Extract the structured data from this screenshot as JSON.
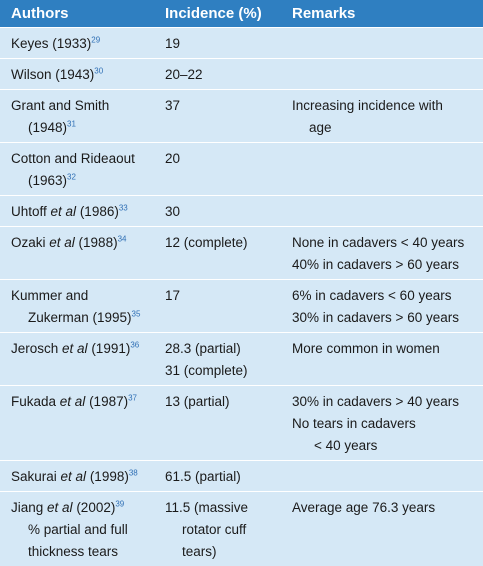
{
  "headers": {
    "authors": "Authors",
    "incidence": "Incidence (%)",
    "remarks": "Remarks"
  },
  "rows": [
    {
      "a1": "Keyes (1933)",
      "ref": "29",
      "inc": "19",
      "rem1": "",
      "rem2": ""
    },
    {
      "a1": "Wilson (1943)",
      "ref": "30",
      "inc": "20–22",
      "rem1": "",
      "rem2": ""
    },
    {
      "a1": "Grant and Smith",
      "a2": "(1948)",
      "ref": "31",
      "inc": "37",
      "rem1": "Increasing incidence with",
      "rem2": "age"
    },
    {
      "a1": "Cotton and Rideaout",
      "a2": "(1963)",
      "ref": "32",
      "inc": "20",
      "rem1": "",
      "rem2": ""
    },
    {
      "a1": "Uhtoff ",
      "etal": "et al",
      "a1b": " (1986)",
      "ref": "33",
      "inc": "30",
      "rem1": "",
      "rem2": ""
    },
    {
      "a1": "Ozaki ",
      "etal": "et al",
      "a1b": " (1988)",
      "ref": "34",
      "inc": "12 (complete)",
      "rem1": "None in cadavers < 40 years",
      "rem2": "40% in cadavers > 60 years"
    },
    {
      "a1": "Kummer and",
      "a2": "Zukerman (1995)",
      "ref": "35",
      "inc": "17",
      "rem1": "6% in cadavers < 60 years",
      "rem2": "30% in cadavers > 60 years"
    },
    {
      "a1": "Jerosch ",
      "etal": "et al",
      "a1b": " (1991)",
      "ref": "36",
      "inc": "28.3 (partial)",
      "inc2": "31 (complete)",
      "rem1": "More common in women"
    },
    {
      "a1": "Fukada ",
      "etal": "et al",
      "a1b": " (1987)",
      "ref": "37",
      "inc": "13 (partial)",
      "rem1": "30% in cadavers > 40 years",
      "rem2": "No tears in cadavers",
      "rem3": "< 40 years"
    },
    {
      "a1": "Sakurai ",
      "etal": "et al",
      "a1b": " (1998)",
      "ref": "38",
      "inc": "61.5 (partial)"
    },
    {
      "a1": "Jiang ",
      "etal": "et al",
      "a1b": " (2002)",
      "ref": "39",
      "a2": "% partial and full",
      "a3": "thickness tears",
      "inc": "11.5 (massive",
      "inc2": "rotator cuff",
      "inc3": "tears)",
      "rem1": "Average age 76.3 years"
    }
  ]
}
